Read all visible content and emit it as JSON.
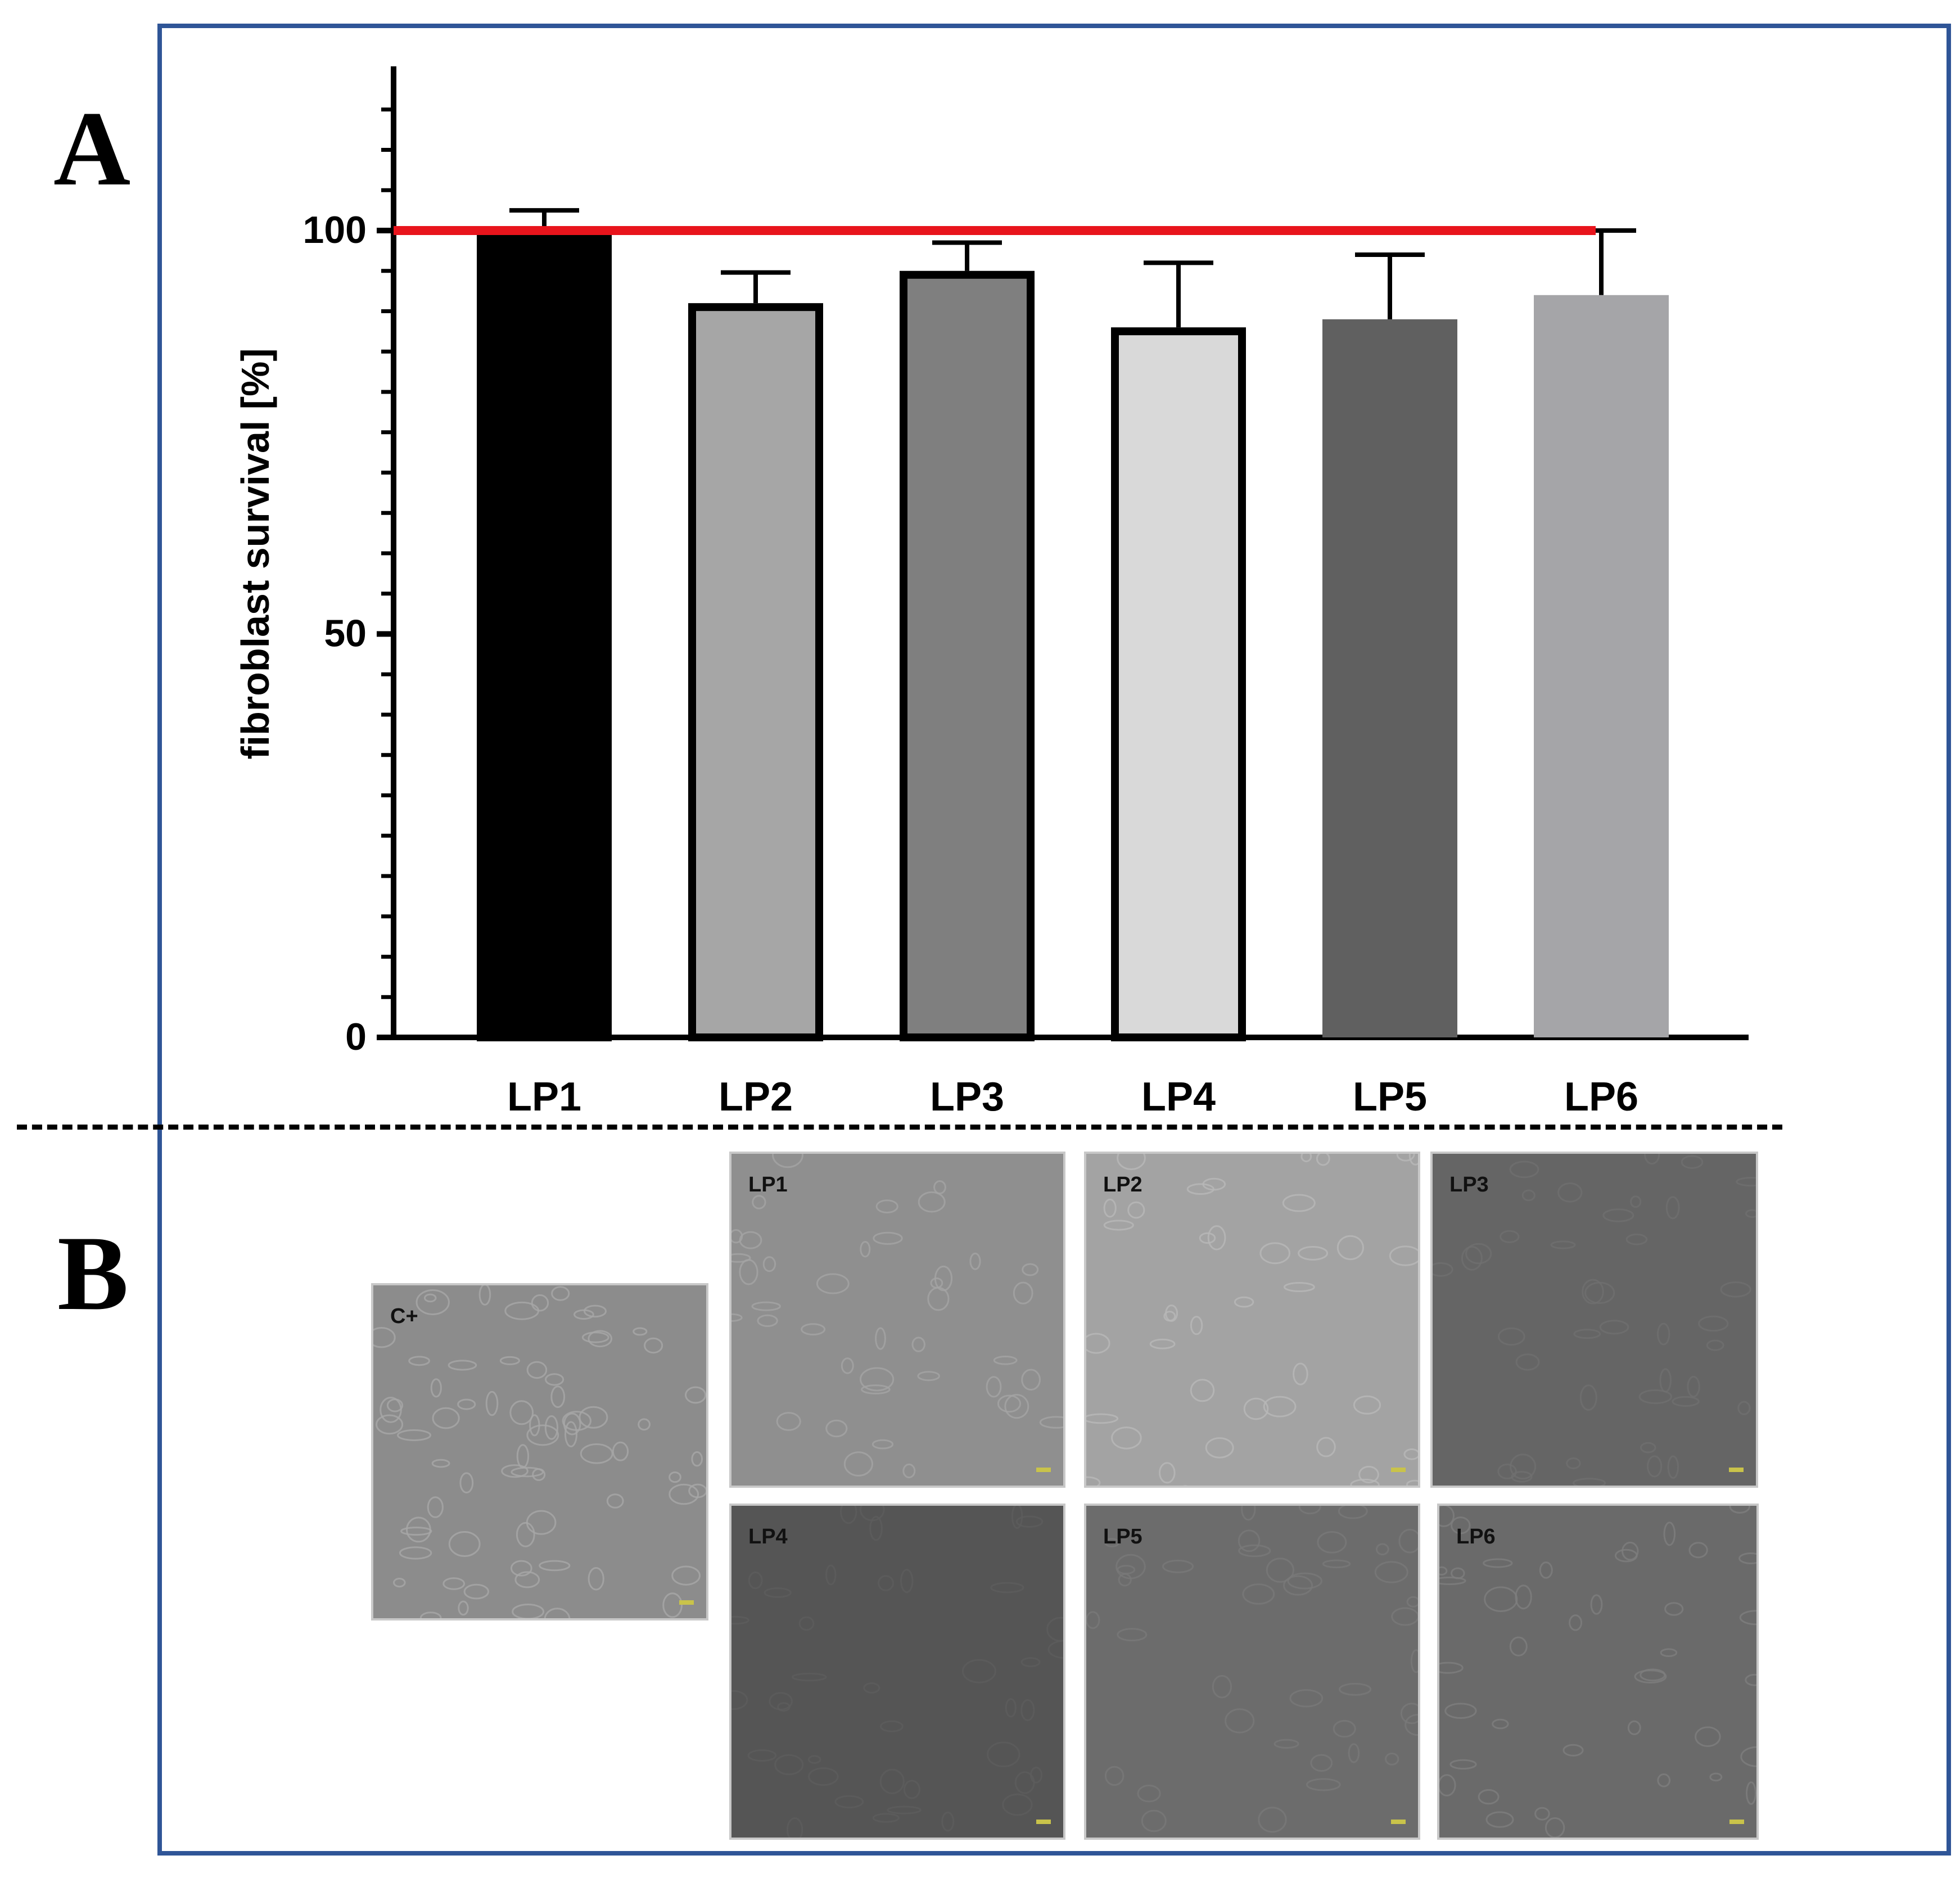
{
  "panels": {
    "a_label": "A",
    "b_label": "B"
  },
  "chart_data": {
    "type": "bar",
    "title": "",
    "xlabel": "",
    "ylabel": "fibroblast survival [%]",
    "ylim": [
      0,
      115
    ],
    "yticks": [
      0,
      50,
      100
    ],
    "ytick_labels": [
      "0",
      "50",
      "100"
    ],
    "categories": [
      "LP1",
      "LP2",
      "LP3",
      "LP4",
      "LP5",
      "LP6"
    ],
    "values": [
      100,
      91,
      95,
      88,
      89,
      92
    ],
    "errors": [
      2.5,
      3.8,
      3.5,
      8,
      8,
      8
    ],
    "bar_fills": [
      "#000000",
      "#a6a6a6",
      "#7f7f7f",
      "#d9d9d9",
      "#606060",
      "#a5a5a8"
    ],
    "bar_outlined": [
      true,
      true,
      true,
      true,
      false,
      false
    ],
    "reference_line": {
      "value": 100,
      "color": "#e8141c"
    },
    "grid": false,
    "legend": "none"
  },
  "micrographs": [
    {
      "label": "C+",
      "base": "#8c8c8c",
      "cell": "#a8a8a8"
    },
    {
      "label": "LP1",
      "base": "#8f8f8f",
      "cell": "#a4a4a4"
    },
    {
      "label": "LP2",
      "base": "#a3a3a3",
      "cell": "#b8b8b8"
    },
    {
      "label": "LP3",
      "base": "#656565",
      "cell": "#6f6f6f"
    },
    {
      "label": "LP4",
      "base": "#555555",
      "cell": "#5d5d5d"
    },
    {
      "label": "LP5",
      "base": "#6c6c6c",
      "cell": "#797979"
    },
    {
      "label": "LP6",
      "base": "#6a6a6a",
      "cell": "#7e7e7e"
    }
  ]
}
